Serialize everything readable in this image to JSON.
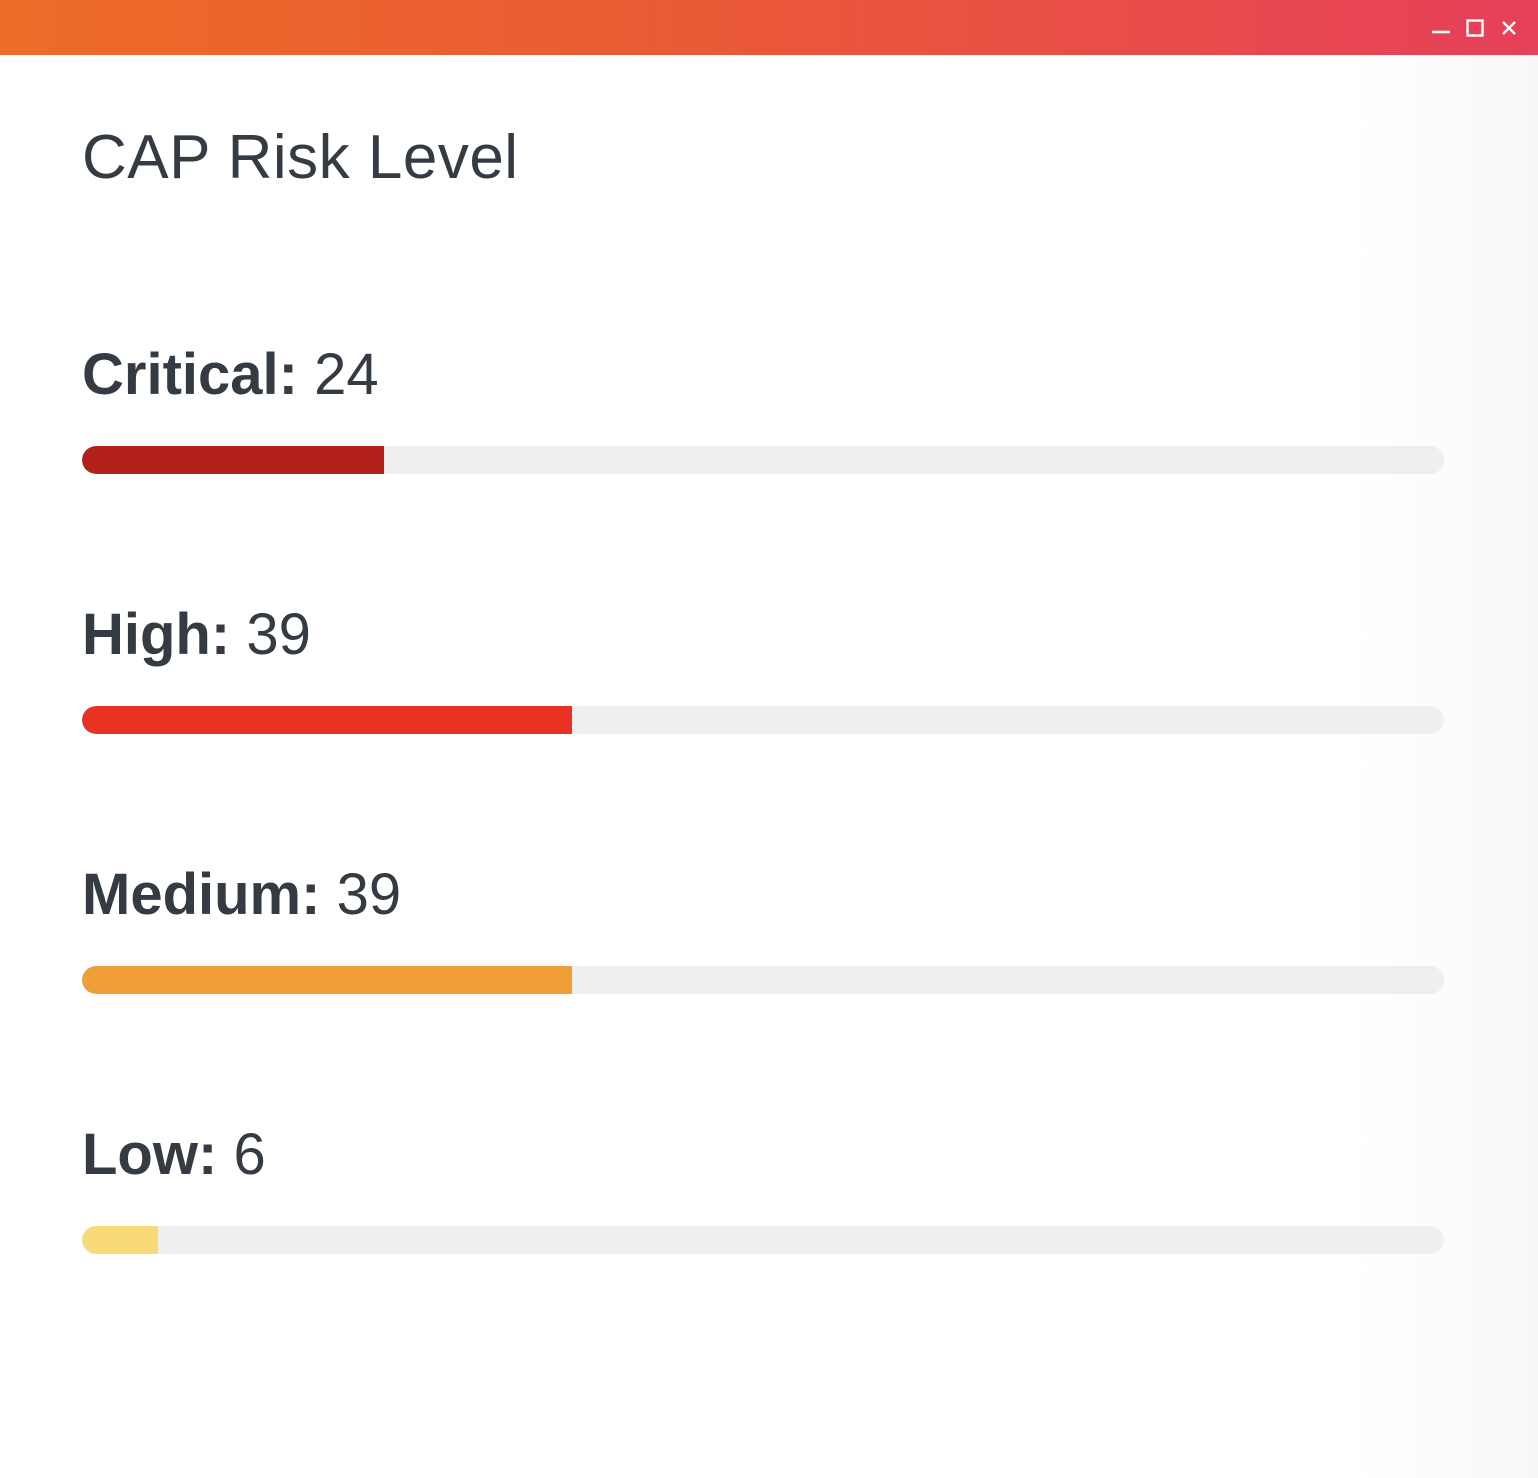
{
  "window": {
    "title_gradient": [
      "#ec6c27",
      "#e6405a"
    ],
    "controls": [
      "minimize-icon",
      "maximize-icon",
      "close-icon"
    ]
  },
  "page": {
    "title": "CAP Risk Level"
  },
  "risks": [
    {
      "label": "Critical",
      "separator": ":",
      "count": "24",
      "fraction": 0.222,
      "color": "#b2201a"
    },
    {
      "label": "High",
      "separator": ":",
      "count": "39",
      "fraction": 0.36,
      "color": "#e83323"
    },
    {
      "label": "Medium",
      "separator": ":",
      "count": "39",
      "fraction": 0.36,
      "color": "#f09e38"
    },
    {
      "label": "Low",
      "separator": ":",
      "count": "6",
      "fraction": 0.056,
      "color": "#f9da79"
    }
  ]
}
